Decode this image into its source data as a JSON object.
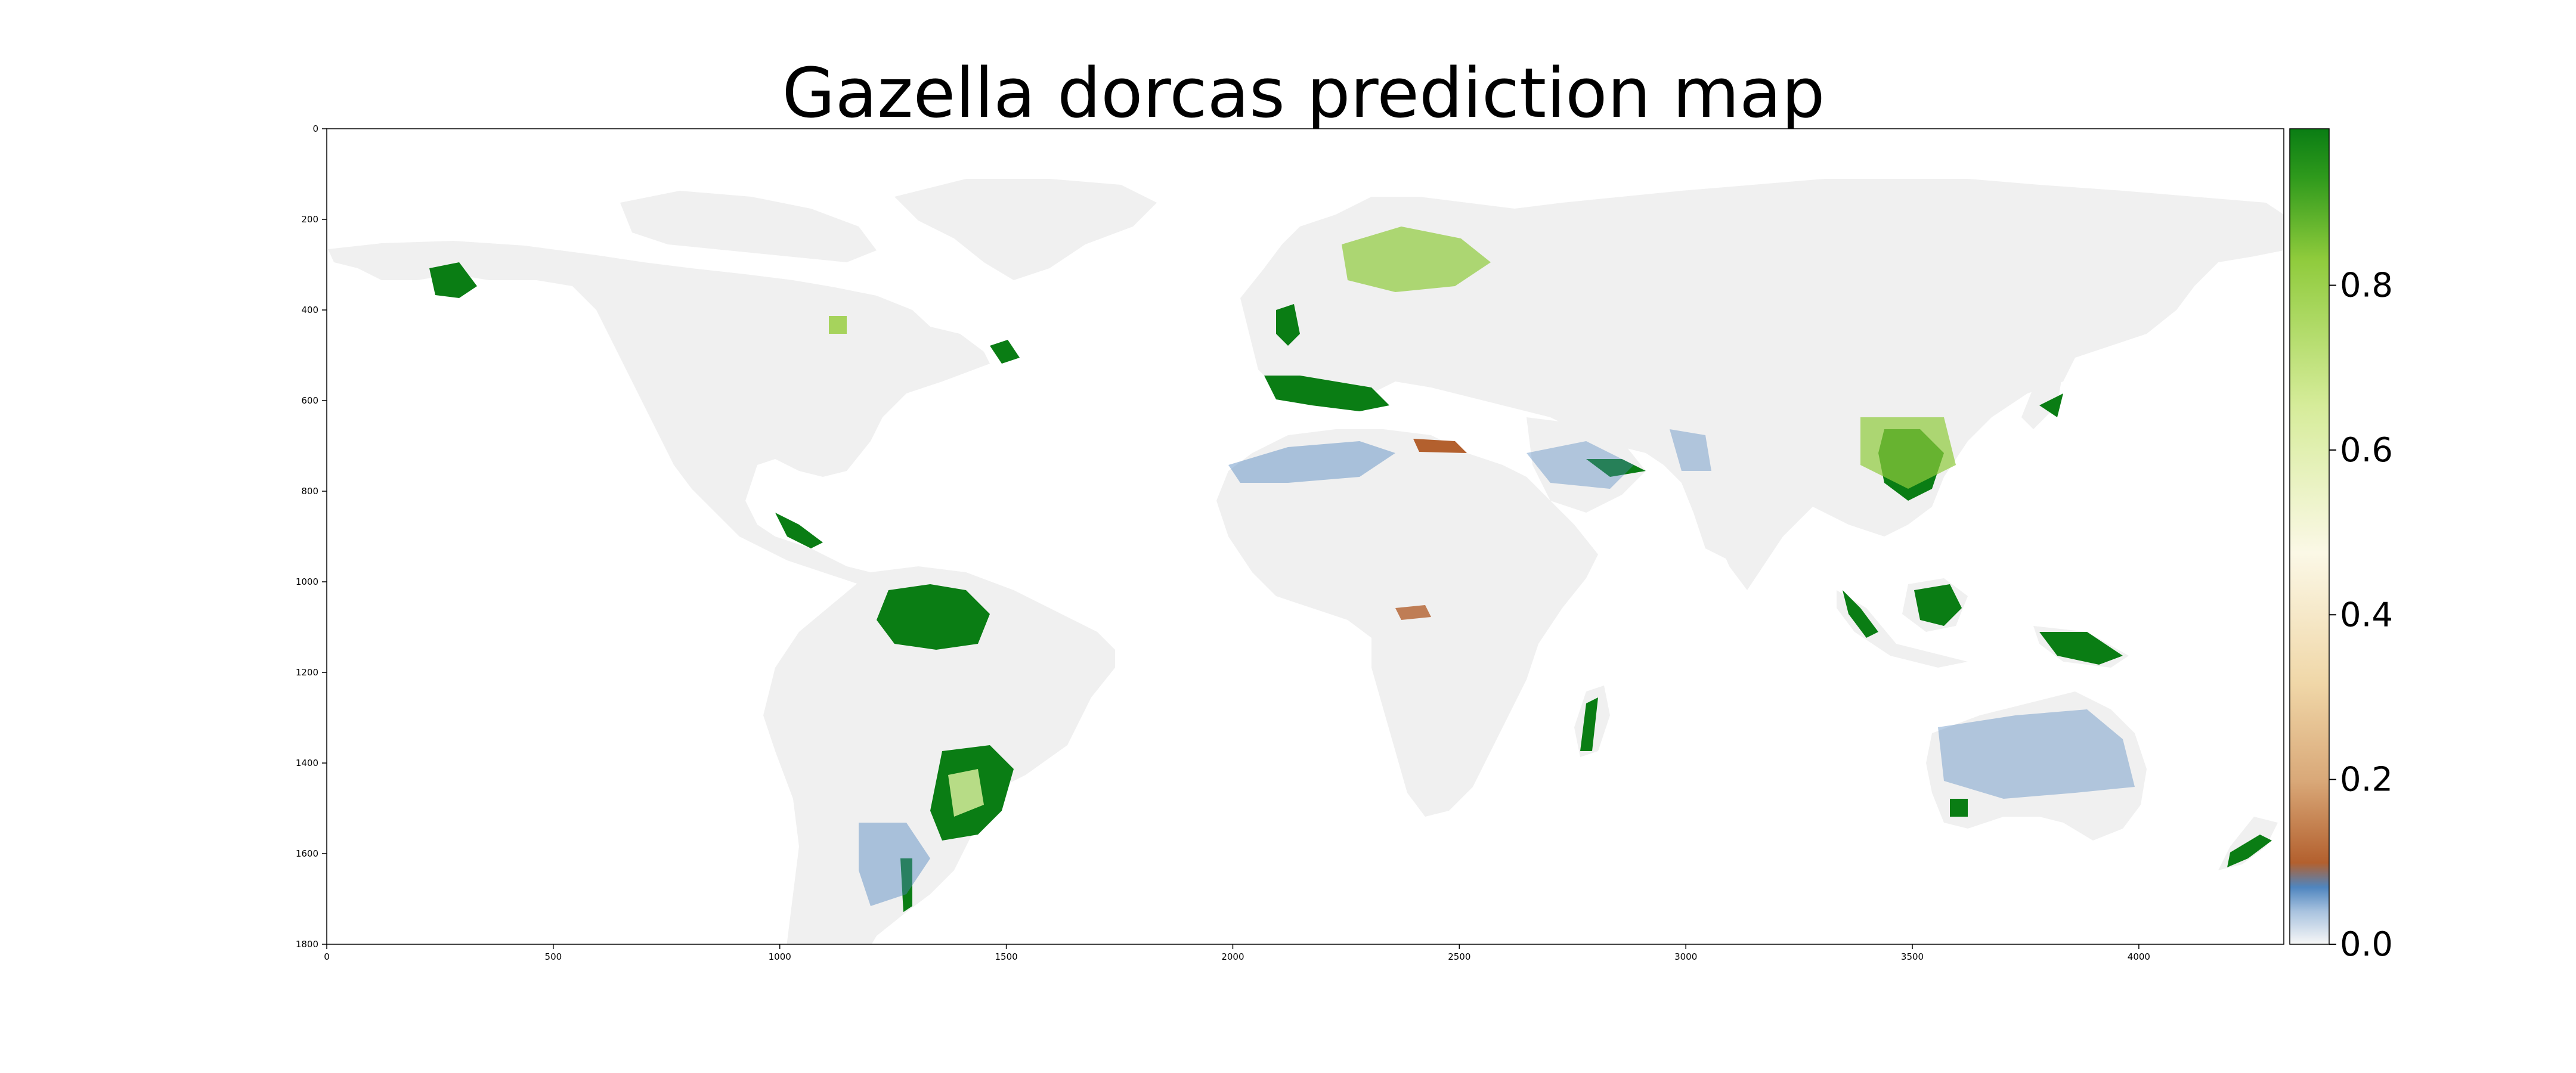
{
  "figure": {
    "title": "Gazella dorcas prediction map"
  },
  "map": {
    "land_color": "#f0f0f0",
    "background_color": "#ffffff",
    "xaxis": {
      "ticks": [
        0,
        500,
        1000,
        1500,
        2000,
        2500,
        3000,
        3500,
        4000
      ],
      "range": [
        0,
        4320
      ]
    },
    "yaxis": {
      "ticks": [
        0,
        200,
        400,
        600,
        800,
        1000,
        1200,
        1400,
        1600,
        1800
      ],
      "range": [
        0,
        1800
      ],
      "inverted": true
    }
  },
  "colorbar": {
    "colormap": [
      "#f7f7f7",
      "#4f85bf",
      "#b3602e",
      "#f0d7a8",
      "#fbf8e6",
      "#d6ec9a",
      "#8fcb3c",
      "#0a7d14"
    ],
    "ticks": [
      "0.0",
      "0.2",
      "0.4",
      "0.6",
      "0.8"
    ],
    "tick_values": [
      0.0,
      0.2,
      0.4,
      0.6,
      0.8
    ],
    "range": [
      0.0,
      0.99
    ]
  }
}
